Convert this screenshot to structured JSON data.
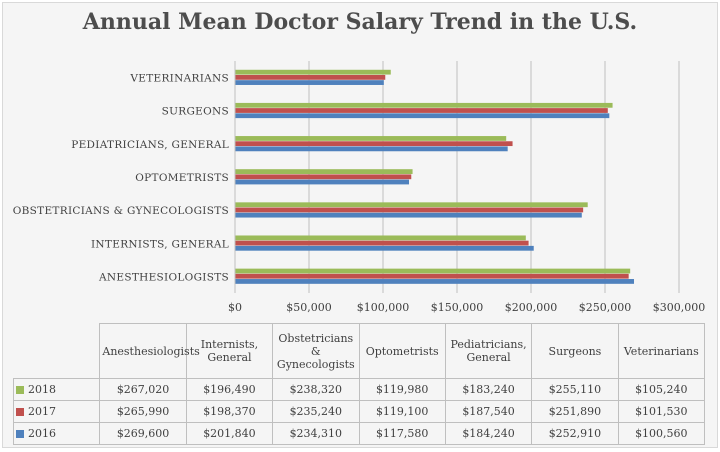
{
  "chart_data": {
    "type": "bar",
    "orientation": "horizontal",
    "title": "Annual Mean Doctor Salary Trend in the U.S.",
    "categories": [
      "ANESTHESIOLOGISTS",
      "INTERNISTS, GENERAL",
      "OBSTETRICIANS & GYNECOLOGISTS",
      "OPTOMETRISTS",
      "PEDIATRICIANS, GENERAL",
      "SURGEONS",
      "VETERINARIANS"
    ],
    "table_headers": [
      "Anesthesiologists",
      "Internists, General",
      "Obstetricians & Gynecologists",
      "Optometrists",
      "Pediatricians, General",
      "Surgeons",
      "Veterinarians"
    ],
    "series": [
      {
        "name": "2018",
        "color": "#9bbb59",
        "values": [
          267020,
          196490,
          238320,
          119980,
          183240,
          255110,
          105240
        ],
        "labels": [
          "$267,020",
          "$196,490",
          "$238,320",
          "$119,980",
          "$183,240",
          "$255,110",
          "$105,240"
        ]
      },
      {
        "name": "2017",
        "color": "#c0504d",
        "values": [
          265990,
          198370,
          235240,
          119100,
          187540,
          251890,
          101530
        ],
        "labels": [
          "$265,990",
          "$198,370",
          "$235,240",
          "$119,100",
          "$187,540",
          "$251,890",
          "$101,530"
        ]
      },
      {
        "name": "2016",
        "color": "#4f81bd",
        "values": [
          269600,
          201840,
          234310,
          117580,
          184240,
          252910,
          100560
        ],
        "labels": [
          "$269,600",
          "$201,840",
          "$234,310",
          "$117,580",
          "$184,240",
          "$252,910",
          "$100,560"
        ]
      }
    ],
    "xlim": [
      0,
      300000
    ],
    "xticks": [
      "$0",
      "$50,000",
      "$100,000",
      "$150,000",
      "$200,000",
      "$250,000",
      "$300,000"
    ],
    "grid": true,
    "legend": "data table"
  }
}
